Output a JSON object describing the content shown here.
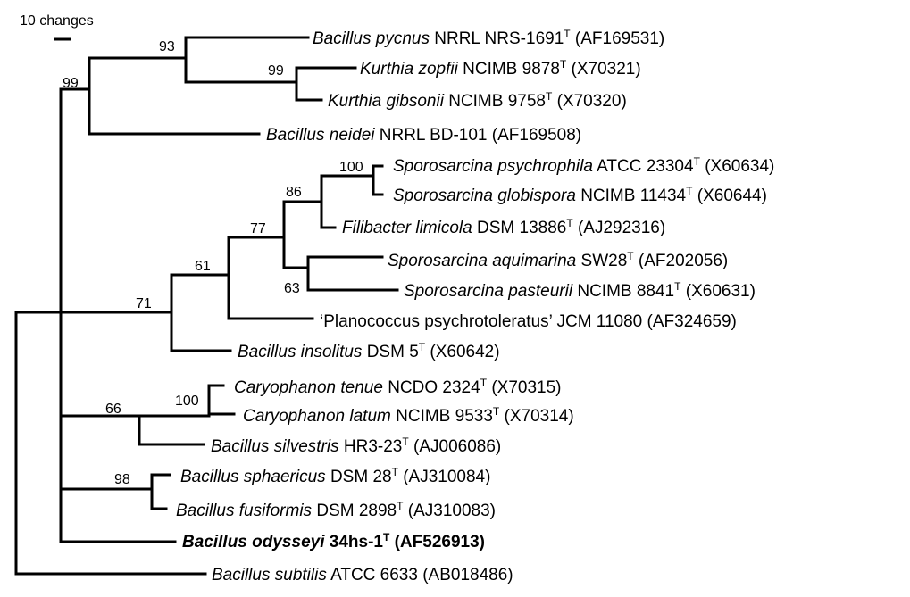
{
  "scale_bar": {
    "label": "10 changes"
  },
  "leaves": [
    {
      "id": "pycnus",
      "genus": "Bacillus",
      "epithet": "pycnus",
      "strain": "NRRL NRS-1691",
      "type_strain": true,
      "accession": "(AF169531)",
      "bold": false
    },
    {
      "id": "zopfii",
      "genus": "Kurthia",
      "epithet": "zopfii",
      "strain": "NCIMB 9878",
      "type_strain": true,
      "accession": "(X70321)",
      "bold": false
    },
    {
      "id": "gibsonii",
      "genus": "Kurthia",
      "epithet": "gibsonii",
      "strain": "NCIMB 9758",
      "type_strain": true,
      "accession": "(X70320)",
      "bold": false
    },
    {
      "id": "neidei",
      "genus": "Bacillus",
      "epithet": "neidei",
      "strain": "NRRL BD-101",
      "type_strain": false,
      "accession": "(AF169508)",
      "bold": false
    },
    {
      "id": "psychrophila",
      "genus": "Sporosarcina",
      "epithet": "psychrophila",
      "strain": "ATCC 23304",
      "type_strain": true,
      "accession": "(X60634)",
      "bold": false
    },
    {
      "id": "globispora",
      "genus": "Sporosarcina",
      "epithet": "globispora",
      "strain": "NCIMB 11434",
      "type_strain": true,
      "accession": "(X60644)",
      "bold": false
    },
    {
      "id": "limicola",
      "genus": "Filibacter",
      "epithet": "limicola",
      "strain": "DSM 13886",
      "type_strain": true,
      "accession": "(AJ292316)",
      "bold": false
    },
    {
      "id": "aquimarina",
      "genus": "Sporosarcina",
      "epithet": "aquimarina",
      "strain": "SW28",
      "type_strain": true,
      "accession": "(AF202056)",
      "bold": false
    },
    {
      "id": "pasteurii",
      "genus": "Sporosarcina",
      "epithet": "pasteurii",
      "strain": "NCIMB 8841",
      "type_strain": true,
      "accession": "(X60631)",
      "bold": false
    },
    {
      "id": "psychrotoleratus",
      "quoted": true,
      "genus": "Planococcus",
      "epithet": "psychrotoleratus",
      "strain": "JCM 11080",
      "type_strain": false,
      "accession": "(AF324659)",
      "bold": false
    },
    {
      "id": "insolitus",
      "genus": "Bacillus",
      "epithet": "insolitus",
      "strain": "DSM 5",
      "type_strain": true,
      "accession": "(X60642)",
      "bold": false
    },
    {
      "id": "tenue",
      "genus": "Caryophanon",
      "epithet": "tenue",
      "strain": "NCDO 2324",
      "type_strain": true,
      "accession": "(X70315)",
      "bold": false
    },
    {
      "id": "latum",
      "genus": "Caryophanon",
      "epithet": "latum",
      "strain": "NCIMB 9533",
      "type_strain": true,
      "accession": "(X70314)",
      "bold": false
    },
    {
      "id": "silvestris",
      "genus": "Bacillus",
      "epithet": "silvestris",
      "strain": "HR3-23",
      "type_strain": true,
      "accession": "(AJ006086)",
      "bold": false
    },
    {
      "id": "sphaericus",
      "genus": "Bacillus",
      "epithet": "sphaericus",
      "strain": "DSM 28",
      "type_strain": true,
      "accession": "(AJ310084)",
      "bold": false
    },
    {
      "id": "fusiformis",
      "genus": "Bacillus",
      "epithet": "fusiformis",
      "strain": "DSM 2898",
      "type_strain": true,
      "accession": "(AJ310083)",
      "bold": false
    },
    {
      "id": "odysseyi",
      "genus": "Bacillus",
      "epithet": "odysseyi",
      "strain": "34hs-1",
      "type_strain": true,
      "accession": "(AF526913)",
      "bold": true
    },
    {
      "id": "subtilis",
      "genus": "Bacillus",
      "epithet": "subtilis",
      "strain": "ATCC 6633",
      "type_strain": false,
      "accession": "(AB018486)",
      "bold": false
    }
  ],
  "bootstrap_values": [
    "93",
    "99",
    "99",
    "100",
    "86",
    "77",
    "61",
    "63",
    "71",
    "100",
    "66",
    "98"
  ]
}
